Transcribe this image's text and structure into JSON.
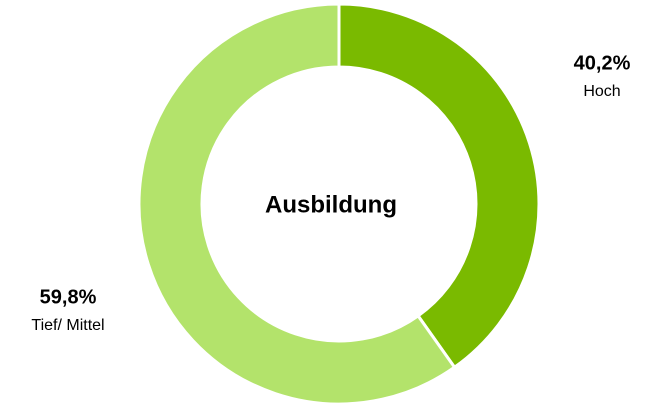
{
  "chart_data": {
    "type": "donut",
    "title": "Ausbildung",
    "categories": [
      "Hoch",
      "Tief/ Mittel"
    ],
    "values": [
      40.2,
      59.8
    ],
    "value_labels": [
      "40,2%",
      "59,8%"
    ],
    "colors": [
      "#7aba00",
      "#b3e36b"
    ]
  }
}
